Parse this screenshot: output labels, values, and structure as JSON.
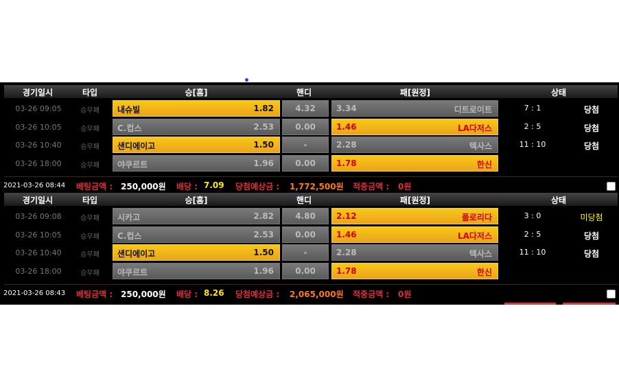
{
  "headers": {
    "date": "경기일시",
    "type": "타입",
    "home": "승[홈]",
    "handi": "핸디",
    "away": "패[원정]",
    "status": "상태"
  },
  "slips": [
    {
      "rows": [
        {
          "date": "03-26 09:05",
          "type": "승무패",
          "home": "내슈빌",
          "home_odds": "1.82",
          "handi": "4.32",
          "away_odds": "3.34",
          "away": "디트로이트",
          "pick": "home",
          "score": "7 : 1",
          "status": "당첨"
        },
        {
          "date": "03-26 10:05",
          "type": "승무패",
          "home": "C.컵스",
          "home_odds": "2.53",
          "handi": "0.00",
          "away_odds": "1.46",
          "away": "LA다저스",
          "pick": "away",
          "score": "2 : 5",
          "status": "당첨"
        },
        {
          "date": "03-26 10:40",
          "type": "승무패",
          "home": "샌디에이고",
          "home_odds": "1.50",
          "handi": "-",
          "away_odds": "2.28",
          "away": "텍사스",
          "pick": "home",
          "score": "11 : 10",
          "status": "당첨"
        },
        {
          "date": "03-26 18:00",
          "type": "승무패",
          "home": "야쿠르트",
          "home_odds": "1.96",
          "handi": "0.00",
          "away_odds": "1.78",
          "away": "한신",
          "pick": "away",
          "score": "",
          "status": ""
        }
      ],
      "summary": {
        "time": "2021-03-26 08:44",
        "bet_label": "베팅금액 :",
        "bet": "250,000원",
        "odds_label": "배당 :",
        "odds": "7.09",
        "expected_label": "당첨예상금 :",
        "expected": "1,772,500원",
        "hit_label": "적중금액 :",
        "hit": "0원"
      }
    },
    {
      "rows": [
        {
          "date": "03-26 09:08",
          "type": "승무패",
          "home": "시카고",
          "home_odds": "2.82",
          "handi": "4.80",
          "away_odds": "2.12",
          "away": "플로리다",
          "pick": "away",
          "score": "3 : 0",
          "status": "미당첨"
        },
        {
          "date": "03-26 10:05",
          "type": "승무패",
          "home": "C.컵스",
          "home_odds": "2.53",
          "handi": "0.00",
          "away_odds": "1.46",
          "away": "LA다저스",
          "pick": "away",
          "score": "2 : 5",
          "status": "당첨"
        },
        {
          "date": "03-26 10:40",
          "type": "승무패",
          "home": "샌디에이고",
          "home_odds": "1.50",
          "handi": "-",
          "away_odds": "2.28",
          "away": "텍사스",
          "pick": "home",
          "score": "11 : 10",
          "status": "당첨"
        },
        {
          "date": "03-26 18:00",
          "type": "승무패",
          "home": "야쿠르트",
          "home_odds": "1.96",
          "handi": "0.00",
          "away_odds": "1.78",
          "away": "한신",
          "pick": "away",
          "score": "",
          "status": ""
        }
      ],
      "summary": {
        "time": "2021-03-26 08:43",
        "bet_label": "베팅금액 :",
        "bet": "250,000원",
        "odds_label": "배당 :",
        "odds": "8.26",
        "expected_label": "당첨예상금 :",
        "expected": "2,065,000원",
        "hit_label": "적중금액 :",
        "hit": "0원"
      }
    }
  ]
}
